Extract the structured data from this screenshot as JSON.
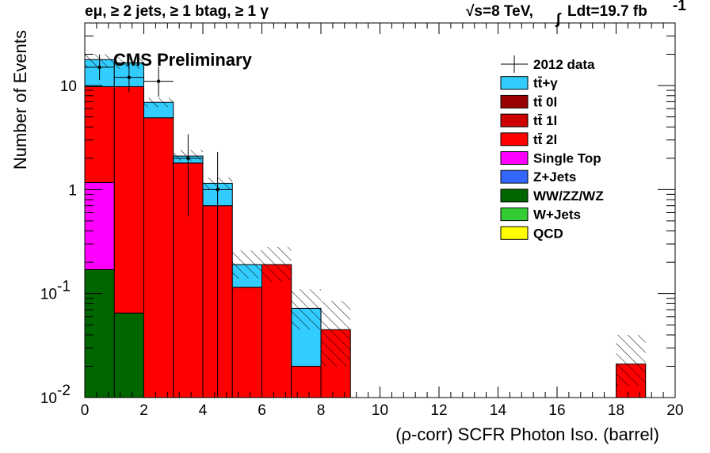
{
  "chart_data": {
    "type": "bar",
    "stacked": true,
    "log_y": true,
    "header_left": "eμ, ≥ 2 jets, ≥ 1 btag, ≥ 1 γ",
    "header_right_sqrt": "√s=8 TeV,",
    "header_right_lumi": "Ldt=19.7 fb",
    "header_right_exp": "-1",
    "watermark": "CMS Preliminary",
    "xlabel": "(ρ-corr) SCFR Photon Iso. (barrel)",
    "ylabel": "Number of Events",
    "xlim": [
      0,
      20
    ],
    "ylim": [
      0.01,
      40
    ],
    "x_ticks": [
      "0",
      "2",
      "4",
      "6",
      "8",
      "10",
      "12",
      "14",
      "16",
      "18",
      "20"
    ],
    "y_ticks": [
      {
        "value": 0.01,
        "base": "10",
        "exp": "-2"
      },
      {
        "value": 0.1,
        "base": "10",
        "exp": "-1"
      },
      {
        "value": 1,
        "base": "1",
        "exp": ""
      },
      {
        "value": 10,
        "base": "10",
        "exp": ""
      }
    ],
    "bin_edges": [
      0,
      1,
      2,
      3,
      4,
      5,
      6,
      7,
      8,
      9,
      10,
      11,
      12,
      13,
      14,
      15,
      16,
      17,
      18,
      19,
      20
    ],
    "series": [
      {
        "name": "WW/ZZ/WZ",
        "color": "#006600",
        "values": [
          0.17,
          0.065,
          0,
          0,
          0,
          0,
          0,
          0,
          0,
          0,
          0,
          0,
          0,
          0,
          0,
          0,
          0,
          0,
          0,
          0
        ]
      },
      {
        "name": "Single Top",
        "color": "#ff00ff",
        "values": [
          1.0,
          0,
          0,
          0,
          0,
          0,
          0,
          0,
          0,
          0,
          0,
          0,
          0,
          0,
          0,
          0,
          0,
          0,
          0,
          0
        ]
      },
      {
        "name": "tt̄ 2l",
        "color": "#ff0000",
        "values": [
          8.6,
          9.7,
          4.9,
          1.8,
          0.7,
          0.115,
          0.19,
          0.02,
          0.045,
          0,
          0,
          0,
          0,
          0,
          0,
          0,
          0,
          0,
          0.021,
          0
        ]
      },
      {
        "name": "tt̄+γ",
        "color": "#33ccff",
        "values": [
          8.0,
          6.8,
          2.0,
          0.3,
          0.45,
          0.075,
          0,
          0.052,
          0,
          0,
          0,
          0,
          0,
          0,
          0,
          0,
          0,
          0,
          0,
          0
        ]
      }
    ],
    "uncertainty_band": [
      {
        "lo": 15,
        "hi": 20
      },
      {
        "lo": 14.5,
        "hi": 19.5
      },
      {
        "lo": 6.2,
        "hi": 7.6
      },
      {
        "lo": 1.9,
        "hi": 2.4
      },
      {
        "lo": 1.0,
        "hi": 1.3
      },
      {
        "lo": 0.14,
        "hi": 0.26
      },
      {
        "lo": 0.13,
        "hi": 0.28
      },
      {
        "lo": 0.045,
        "hi": 0.11
      },
      {
        "lo": 0.02,
        "hi": 0.085
      },
      null,
      null,
      null,
      null,
      null,
      null,
      null,
      null,
      null,
      {
        "lo": 0.013,
        "hi": 0.04
      },
      null
    ],
    "data": {
      "name": "2012 data",
      "points": [
        {
          "x": 0.5,
          "y": 15,
          "lo": 11.3,
          "hi": 19.9
        },
        {
          "x": 1.5,
          "y": 12,
          "lo": 8.6,
          "hi": 16.3
        },
        {
          "x": 2.5,
          "y": 11,
          "lo": 7.8,
          "hi": 15.2
        },
        {
          "x": 3.5,
          "y": 2,
          "lo": 0.55,
          "hi": 3.4
        },
        {
          "x": 4.5,
          "y": 1,
          "lo": 0.0101,
          "hi": 2.3
        }
      ]
    },
    "legend": {
      "position": "top-right",
      "entries": [
        {
          "label": "2012 data",
          "kind": "data",
          "color": "#000000"
        },
        {
          "label": "tt̄+γ",
          "kind": "box",
          "color": "#33ccff"
        },
        {
          "label": "tt̄ 0l",
          "kind": "box",
          "color": "#990000"
        },
        {
          "label": "tt̄ 1l",
          "kind": "box",
          "color": "#cc0000"
        },
        {
          "label": "tt̄ 2l",
          "kind": "box",
          "color": "#ff0000"
        },
        {
          "label": "Single Top",
          "kind": "box",
          "color": "#ff00ff"
        },
        {
          "label": "Z+Jets",
          "kind": "box",
          "color": "#3366ff"
        },
        {
          "label": "WW/ZZ/WZ",
          "kind": "box",
          "color": "#006600"
        },
        {
          "label": "W+Jets",
          "kind": "box",
          "color": "#33cc33"
        },
        {
          "label": "QCD",
          "kind": "box",
          "color": "#ffff00"
        }
      ]
    }
  }
}
